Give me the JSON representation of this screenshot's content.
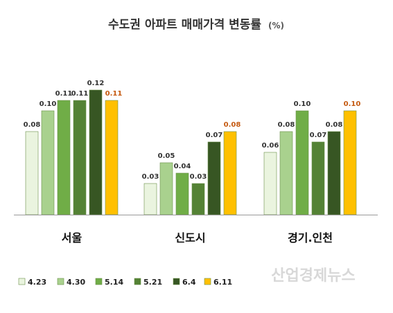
{
  "chart_data": {
    "type": "bar",
    "title": "수도권 아파트 매매가격 변동률",
    "unit": "(%)",
    "xlabel": "",
    "ylabel": "",
    "ylim": [
      0,
      0.12
    ],
    "grid": false,
    "legend_position": "bottom-left",
    "categories": [
      "서울",
      "신도시",
      "경기.인천"
    ],
    "series": [
      {
        "name": "4.23",
        "values": [
          0.08,
          0.03,
          0.06
        ],
        "labels": [
          "0.08",
          "0.03",
          "0.06"
        ],
        "color": "#eaf4df"
      },
      {
        "name": "4.30",
        "values": [
          0.1,
          0.05,
          0.08
        ],
        "labels": [
          "0.10",
          "0.05",
          "0.08"
        ],
        "color": "#a9d18e"
      },
      {
        "name": "5.14",
        "values": [
          0.11,
          0.04,
          0.1
        ],
        "labels": [
          "0.11",
          "0.04",
          "0.10"
        ],
        "color": "#70ad47"
      },
      {
        "name": "5.21",
        "values": [
          0.11,
          0.03,
          0.07
        ],
        "labels": [
          "0.11",
          "0.03",
          "0.07"
        ],
        "color": "#548235"
      },
      {
        "name": "6.4",
        "values": [
          0.12,
          0.07,
          0.08
        ],
        "labels": [
          "0.12",
          "0.07",
          "0.08"
        ],
        "color": "#375623"
      },
      {
        "name": "6.11",
        "values": [
          0.11,
          0.08,
          0.1
        ],
        "labels": [
          "0.11",
          "0.08",
          "0.10"
        ],
        "color": "#ffc000",
        "label_color": "#c55a11"
      }
    ]
  },
  "watermark": {
    "text": "산업경제뉴스"
  },
  "colors": {
    "label_default": "#333333",
    "axis": "#999999",
    "bar_border": "#6a8f4a"
  }
}
